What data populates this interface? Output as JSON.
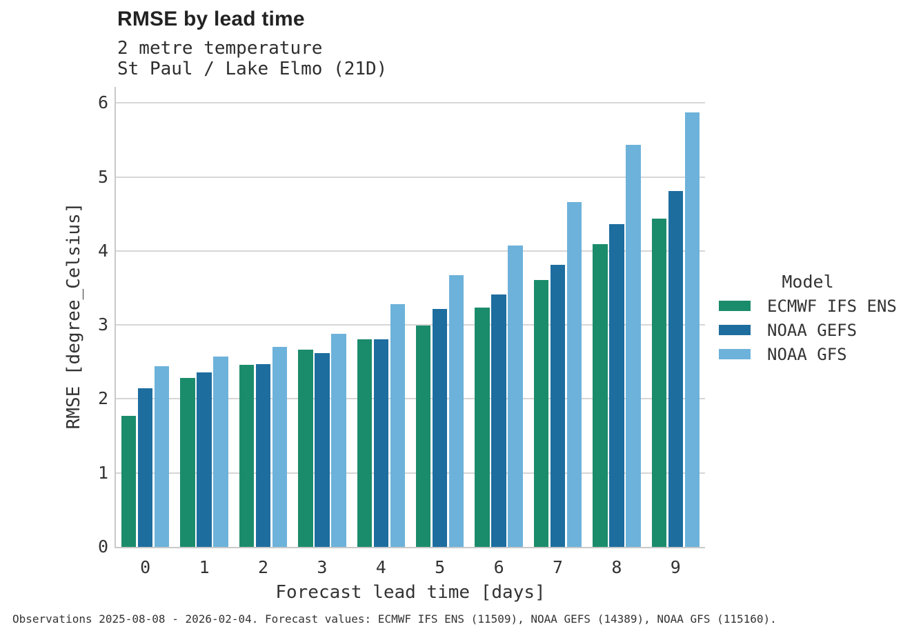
{
  "chart_data": {
    "type": "bar",
    "title": "RMSE by lead time",
    "subtitle": "2 metre temperature",
    "subtitle2": "St Paul / Lake Elmo (21D)",
    "xlabel": "Forecast lead time [days]",
    "ylabel": "RMSE [degree_Celsius]",
    "categories": [
      "0",
      "1",
      "2",
      "3",
      "4",
      "5",
      "6",
      "7",
      "8",
      "9"
    ],
    "yticks": [
      0,
      1,
      2,
      3,
      4,
      5,
      6
    ],
    "ylim": [
      0,
      6.21
    ],
    "grid": "horizontal-only",
    "legend_title": "Model",
    "legend_position": "right",
    "series": [
      {
        "name": "ECMWF IFS ENS",
        "color": "#1b8c6b",
        "values": [
          1.77,
          2.28,
          2.46,
          2.67,
          2.81,
          2.99,
          3.23,
          3.61,
          4.09,
          4.44
        ]
      },
      {
        "name": "NOAA GEFS",
        "color": "#1d6d9f",
        "values": [
          2.14,
          2.36,
          2.47,
          2.62,
          2.81,
          3.22,
          3.41,
          3.81,
          4.36,
          4.81
        ]
      },
      {
        "name": "NOAA GFS",
        "color": "#6db2da",
        "values": [
          2.44,
          2.57,
          2.7,
          2.88,
          3.28,
          3.67,
          4.07,
          4.66,
          5.43,
          5.87
        ]
      }
    ]
  },
  "caption": "Observations 2025-08-08 - 2026-02-04. Forecast values: ECMWF IFS ENS (11509), NOAA GEFS (14389), NOAA GFS (115160).",
  "colors": {
    "gridline": "#d6d6d6",
    "axis_spine": "#c9c9c9",
    "text": "#333333"
  }
}
